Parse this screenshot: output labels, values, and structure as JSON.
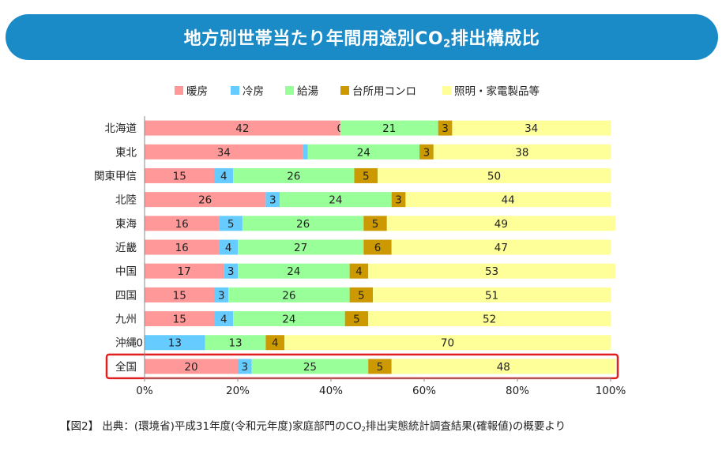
{
  "title": {
    "before_sub": "地方別世帯当たり年間用途別CO",
    "sub": "2",
    "after_sub": "排出構成比"
  },
  "source": {
    "before_sub": "【図2】 出典：(環境省)平成31年度(令和元年度)家庭部門のCO",
    "sub": "2",
    "after_sub": "排出実態統計調査結果(確報値)の概要より"
  },
  "chart_data": {
    "type": "bar",
    "orientation": "horizontal",
    "stacked": true,
    "categories": [
      "北海道",
      "東北",
      "関東甲信",
      "北陸",
      "東海",
      "近畿",
      "中国",
      "四国",
      "九州",
      "沖縄",
      "全国"
    ],
    "series": [
      {
        "name": "暖房",
        "color": "#ff9999",
        "values": [
          42,
          34,
          15,
          26,
          16,
          16,
          17,
          15,
          15,
          0,
          20
        ]
      },
      {
        "name": "冷房",
        "color": "#66ccff",
        "values": [
          0,
          1,
          4,
          3,
          5,
          4,
          3,
          3,
          4,
          13,
          3
        ]
      },
      {
        "name": "給湯",
        "color": "#99ff99",
        "values": [
          21,
          24,
          26,
          24,
          26,
          27,
          24,
          26,
          24,
          13,
          25
        ]
      },
      {
        "name": "台所用コンロ",
        "color": "#cc9900",
        "values": [
          3,
          3,
          5,
          3,
          5,
          6,
          4,
          5,
          5,
          4,
          5
        ]
      },
      {
        "name": "照明・家電製品等",
        "color": "#ffff99",
        "values": [
          34,
          38,
          50,
          44,
          49,
          47,
          53,
          51,
          52,
          70,
          48
        ]
      }
    ],
    "data_labels": [
      [
        "42",
        "0",
        "21",
        "3",
        "34"
      ],
      [
        "34",
        "",
        "24",
        "3",
        "38"
      ],
      [
        "15",
        "4",
        "26",
        "5",
        "50"
      ],
      [
        "26",
        "3",
        "24",
        "3",
        "44"
      ],
      [
        "16",
        "5",
        "26",
        "5",
        "49"
      ],
      [
        "16",
        "4",
        "27",
        "6",
        "47"
      ],
      [
        "17",
        "3",
        "24",
        "4",
        "53"
      ],
      [
        "15",
        "3",
        "26",
        "5",
        "51"
      ],
      [
        "15",
        "4",
        "24",
        "5",
        "52"
      ],
      [
        "0",
        "13",
        "13",
        "4",
        "70"
      ],
      [
        "20",
        "3",
        "25",
        "5",
        "48"
      ]
    ],
    "x_ticks": [
      "0%",
      "20%",
      "40%",
      "60%",
      "80%",
      "100%"
    ],
    "xlim": [
      0,
      100
    ],
    "grid": false,
    "legend": "top",
    "highlight_category": "全国",
    "highlight_color": "#e02020"
  }
}
